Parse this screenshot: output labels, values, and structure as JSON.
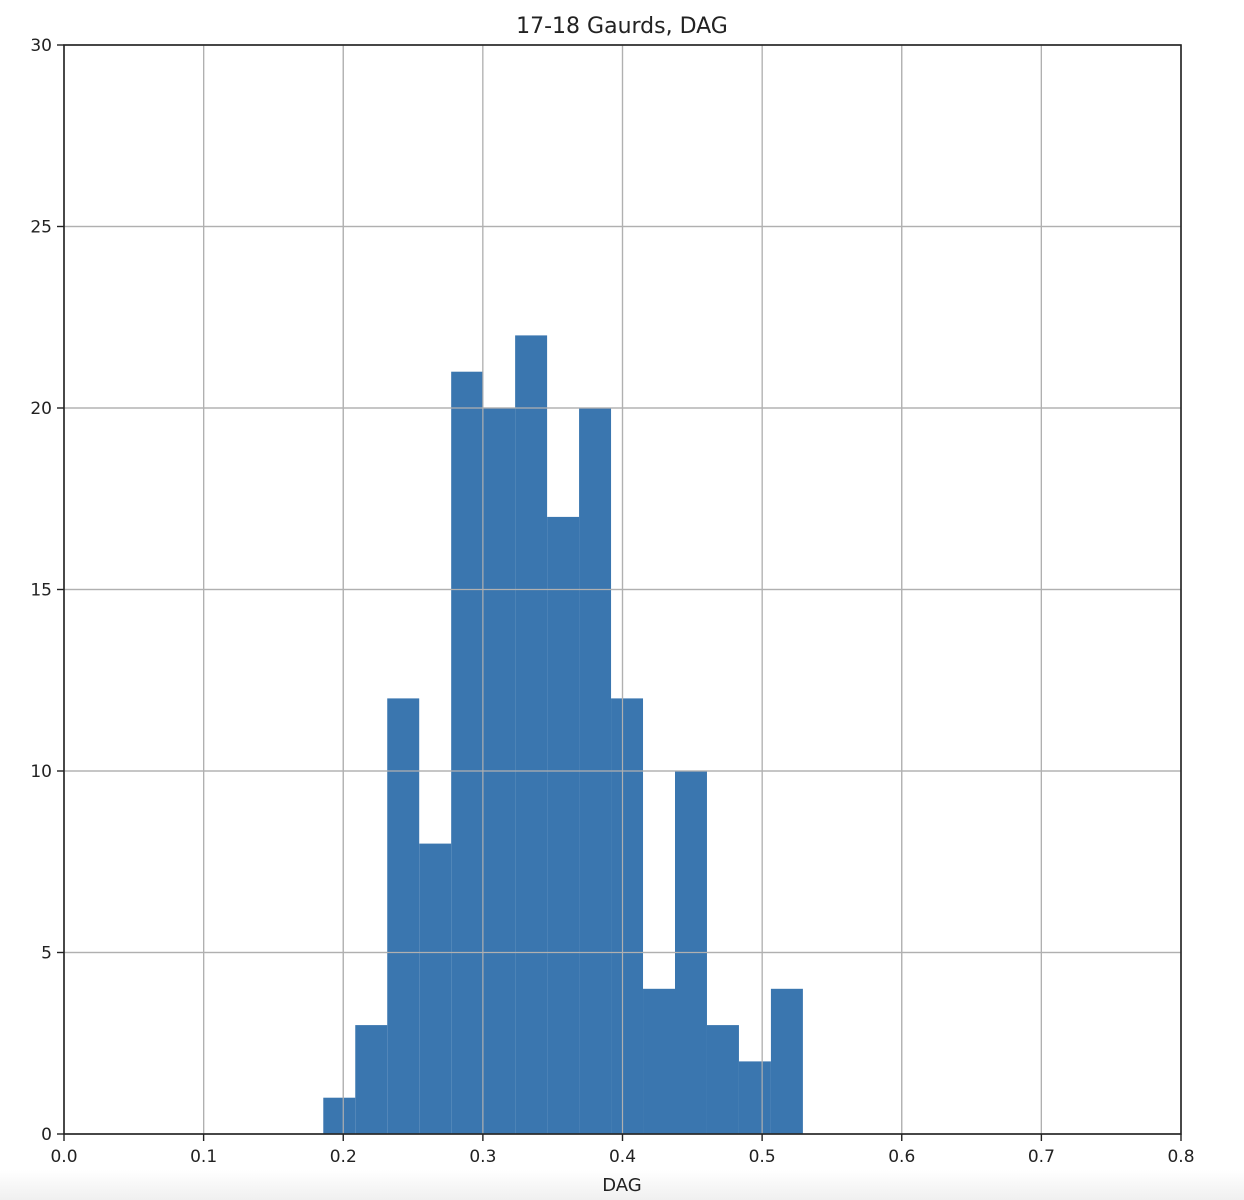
{
  "chart_data": {
    "type": "bar",
    "title": "17-18 Gaurds, DAG",
    "xlabel": "DAG",
    "ylabel": "",
    "xlim": [
      0.0,
      0.8
    ],
    "ylim": [
      0,
      30
    ],
    "x_ticks": [
      "0.0",
      "0.1",
      "0.2",
      "0.3",
      "0.4",
      "0.5",
      "0.6",
      "0.7",
      "0.8"
    ],
    "y_ticks": [
      "0",
      "5",
      "10",
      "15",
      "20",
      "25",
      "30"
    ],
    "grid": true,
    "bar_color": "#3a76af",
    "bins": [
      {
        "x0": 0.1857,
        "x1": 0.2086,
        "count": 1
      },
      {
        "x0": 0.2086,
        "x1": 0.2315,
        "count": 3
      },
      {
        "x0": 0.2315,
        "x1": 0.2544,
        "count": 12
      },
      {
        "x0": 0.2544,
        "x1": 0.2773,
        "count": 8
      },
      {
        "x0": 0.2773,
        "x1": 0.3002,
        "count": 21
      },
      {
        "x0": 0.3002,
        "x1": 0.3231,
        "count": 20
      },
      {
        "x0": 0.3231,
        "x1": 0.346,
        "count": 22
      },
      {
        "x0": 0.346,
        "x1": 0.3689,
        "count": 17
      },
      {
        "x0": 0.3689,
        "x1": 0.3918,
        "count": 20
      },
      {
        "x0": 0.3918,
        "x1": 0.4147,
        "count": 12
      },
      {
        "x0": 0.4147,
        "x1": 0.4376,
        "count": 4
      },
      {
        "x0": 0.4376,
        "x1": 0.4605,
        "count": 10
      },
      {
        "x0": 0.4605,
        "x1": 0.4834,
        "count": 3
      },
      {
        "x0": 0.4834,
        "x1": 0.5063,
        "count": 2
      },
      {
        "x0": 0.5063,
        "x1": 0.5292,
        "count": 4
      }
    ]
  }
}
